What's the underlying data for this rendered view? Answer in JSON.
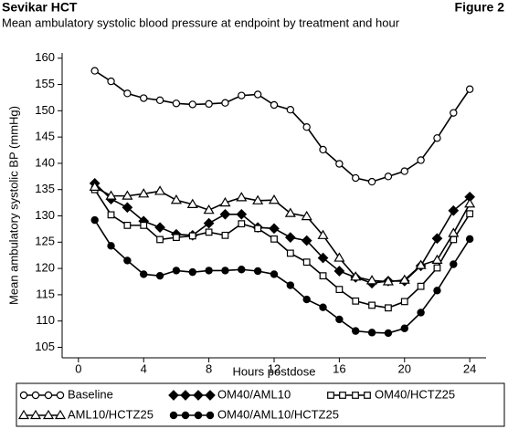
{
  "chart_data": {
    "type": "line",
    "title": "Sevikar HCT",
    "figure_label": "Figure 2",
    "subtitle": "Mean ambulatory systolic blood pressure at endpoint by treatment and hour",
    "x_label": "Hours postdose",
    "y_label": "Mean ambulatory systolic BP (mmHg)",
    "x": [
      1,
      2,
      3,
      4,
      5,
      6,
      7,
      8,
      9,
      10,
      11,
      12,
      13,
      14,
      15,
      16,
      17,
      18,
      19,
      20,
      21,
      22,
      23,
      24
    ],
    "xlim": [
      -1,
      25
    ],
    "xticks": [
      0,
      4,
      8,
      12,
      16,
      20,
      24
    ],
    "ylim": [
      103,
      161
    ],
    "yticks": [
      105,
      110,
      115,
      120,
      125,
      130,
      135,
      140,
      145,
      150,
      155,
      160
    ],
    "series": [
      {
        "name": "Baseline",
        "color": "#000000",
        "marker": "circle-open",
        "values": [
          157.6,
          155.6,
          153.3,
          152.4,
          152.0,
          151.4,
          151.2,
          151.3,
          151.5,
          152.9,
          153.1,
          151.1,
          150.2,
          146.9,
          142.6,
          139.9,
          137.2,
          136.5,
          137.5,
          138.5,
          140.6,
          144.8,
          149.6,
          154.1
        ]
      },
      {
        "name": "OM40/AML10",
        "color": "#000000",
        "marker": "diamond-filled",
        "values": [
          136.2,
          133.2,
          131.6,
          129.0,
          127.8,
          126.5,
          126.3,
          128.6,
          130.3,
          130.3,
          127.8,
          127.6,
          125.9,
          125.3,
          122.0,
          119.5,
          118.3,
          117.2,
          117.6,
          117.6,
          120.5,
          125.7,
          131.0,
          133.6
        ]
      },
      {
        "name": "OM40/HCTZ25",
        "color": "#000000",
        "marker": "square-open",
        "values": [
          135.0,
          130.2,
          128.2,
          128.2,
          125.5,
          125.9,
          126.2,
          126.9,
          126.3,
          128.5,
          127.6,
          125.6,
          122.9,
          121.2,
          118.6,
          116.0,
          113.8,
          113.0,
          112.5,
          113.7,
          116.6,
          120.1,
          125.5,
          130.4
        ]
      },
      {
        "name": "AML10/HCTZ25",
        "color": "#000000",
        "marker": "triangle-open",
        "values": [
          135.5,
          133.8,
          133.8,
          134.2,
          134.7,
          133.0,
          132.2,
          131.1,
          132.5,
          133.5,
          132.9,
          133.0,
          130.5,
          129.9,
          126.3,
          122.0,
          118.4,
          117.7,
          117.5,
          117.8,
          120.6,
          121.6,
          126.7,
          132.3
        ]
      },
      {
        "name": "OM40/AML10/HCTZ25",
        "color": "#000000",
        "marker": "circle-filled",
        "values": [
          129.2,
          124.3,
          121.5,
          118.9,
          118.6,
          119.6,
          119.3,
          119.6,
          119.6,
          119.8,
          119.5,
          118.9,
          116.8,
          114.1,
          112.6,
          110.3,
          108.1,
          107.8,
          107.7,
          108.6,
          111.6,
          115.8,
          120.8,
          125.6
        ]
      }
    ]
  }
}
